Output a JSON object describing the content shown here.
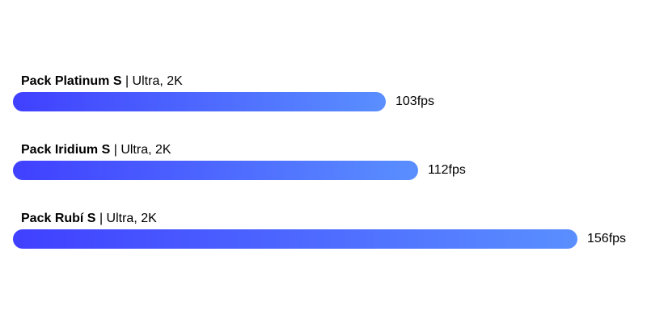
{
  "chart_data": {
    "type": "bar",
    "orientation": "horizontal",
    "categories": [
      "Pack Platinum S",
      "Pack Iridium S",
      "Pack Rubí S"
    ],
    "settings": [
      "| Ultra, 2K",
      "| Ultra, 2K",
      "| Ultra, 2K"
    ],
    "values": [
      103,
      112,
      156
    ],
    "value_labels": [
      "103fps",
      "112fps",
      "156fps"
    ],
    "unit": "fps",
    "xlim": [
      0,
      156
    ],
    "grid": false,
    "title": "",
    "xlabel": "",
    "ylabel": "",
    "bar_gradient": [
      "#4040ff",
      "#5a8fff"
    ]
  }
}
